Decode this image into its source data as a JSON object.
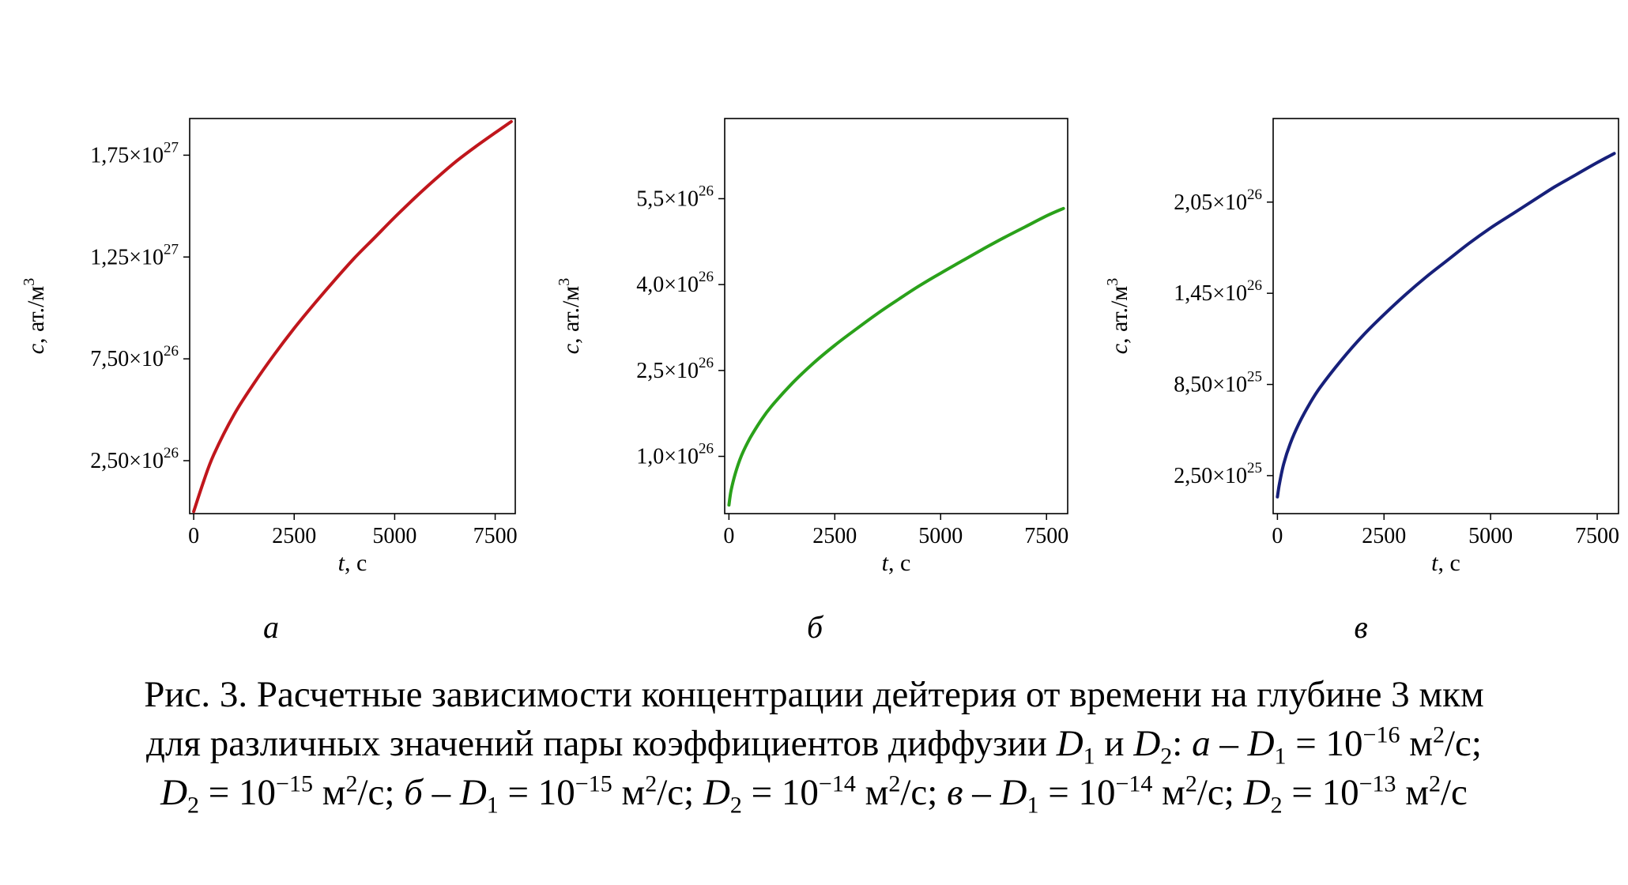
{
  "figure": {
    "caption_lines": [
      "Рис. 3. Расчетные зависимости концентрации дейтерия от времени на глубине 3 мкм",
      "для различных значений пары коэффициентов диффузии D1 и D2: а – D1 = 10−16 м2/с;",
      "D2 = 10−15 м2/с; б – D1 = 10−15 м2/с; D2 = 10−14 м2/с; в – D1 = 10−14 м2/с; D2 = 10−13 м2/с"
    ]
  },
  "chart_data": [
    {
      "type": "line",
      "panel_label": "а",
      "xlabel_var": "t",
      "xlabel_unit": ", с",
      "ylabel_var": "c",
      "ylabel_unit": ", ат./м",
      "ylabel_exp": "3",
      "color": "#c0161c",
      "xlim": [
        -100,
        8000
      ],
      "ylim": [
        -10000000000000000000000000,
        1930000000000000000000000000
      ],
      "xticks": [
        0,
        2500,
        5000,
        7500
      ],
      "xtick_labels": [
        "0",
        "2500",
        "5000",
        "7500"
      ],
      "yticks": [
        250000000000000000000000000,
        750000000000000000000000000,
        1250000000000000000000000000,
        1750000000000000000000000000
      ],
      "ytick_labels": [
        {
          "mantissa": "2,50×10",
          "exp": "26"
        },
        {
          "mantissa": "7,50×10",
          "exp": "26"
        },
        {
          "mantissa": "1,25×10",
          "exp": "27"
        },
        {
          "mantissa": "1,75×10",
          "exp": "27"
        }
      ],
      "series": [
        {
          "x": [
            0,
            250,
            500,
            1000,
            1500,
            2000,
            2500,
            3000,
            3500,
            4000,
            4500,
            5000,
            5500,
            6000,
            6500,
            7000,
            7500,
            7900
          ],
          "y": [
            0,
            150000000000000000000000000,
            280000000000000000000000000,
            475000000000000000000000000,
            630000000000000000000000000,
            770000000000000000000000000,
            900000000000000000000000000,
            1020000000000000000000000000,
            1135000000000000000000000000,
            1245000000000000000000000000,
            1345000000000000000000000000,
            1445000000000000000000000000,
            1540000000000000000000000000,
            1630000000000000000000000000,
            1715000000000000000000000000,
            1790000000000000000000000000,
            1860000000000000000000000000,
            1915000000000000000000000000
          ]
        }
      ]
    },
    {
      "type": "line",
      "panel_label": "б",
      "xlabel_var": "t",
      "xlabel_unit": ", с",
      "ylabel_var": "c",
      "ylabel_unit": ", ат./м",
      "ylabel_exp": "3",
      "color": "#2aa11a",
      "xlim": [
        -100,
        8000
      ],
      "ylim": [
        0,
        690000000000000000000000000
      ],
      "xticks": [
        0,
        2500,
        5000,
        7500
      ],
      "xtick_labels": [
        "0",
        "2500",
        "5000",
        "7500"
      ],
      "yticks": [
        100000000000000000000000000,
        250000000000000000000000000,
        400000000000000000000000000,
        550000000000000000000000000
      ],
      "ytick_labels": [
        {
          "mantissa": "1,0×10",
          "exp": "26"
        },
        {
          "mantissa": "2,5×10",
          "exp": "26"
        },
        {
          "mantissa": "4,0×10",
          "exp": "26"
        },
        {
          "mantissa": "5,5×10",
          "exp": "26"
        }
      ],
      "series": [
        {
          "x": [
            0,
            50,
            150,
            300,
            500,
            750,
            1000,
            1500,
            2000,
            2500,
            3000,
            3500,
            4000,
            4500,
            5000,
            5500,
            6000,
            6500,
            7000,
            7500,
            7900
          ],
          "y": [
            15000000000000000000000000,
            40000000000000000000000000,
            70000000000000000000000000,
            102000000000000000000000000,
            132000000000000000000000000,
            162000000000000000000000000,
            187000000000000000000000000,
            228000000000000000000000000,
            263000000000000000000000000,
            294000000000000000000000000,
            322000000000000000000000000,
            349000000000000000000000000,
            374000000000000000000000000,
            398000000000000000000000000,
            420000000000000000000000000,
            441000000000000000000000000,
            462000000000000000000000000,
            482000000000000000000000000,
            501000000000000000000000000,
            520000000000000000000000000,
            533000000000000000000000000
          ]
        }
      ]
    },
    {
      "type": "line",
      "panel_label": "в",
      "xlabel_var": "t",
      "xlabel_unit": ", с",
      "ylabel_var": "c",
      "ylabel_unit": ", ат./м",
      "ylabel_exp": "3",
      "color": "#17207a",
      "xlim": [
        -100,
        8000
      ],
      "ylim": [
        0,
        260000000000000000000000000
      ],
      "xticks": [
        0,
        2500,
        5000,
        7500
      ],
      "xtick_labels": [
        "0",
        "2500",
        "5000",
        "7500"
      ],
      "yticks": [
        25000000000000000000000000,
        85000000000000000000000000,
        145000000000000000000000000,
        205000000000000000000000000
      ],
      "ytick_labels": [
        {
          "mantissa": "2,50×10",
          "exp": "25"
        },
        {
          "mantissa": "8,50×10",
          "exp": "25"
        },
        {
          "mantissa": "1,45×10",
          "exp": "26"
        },
        {
          "mantissa": "2,05×10",
          "exp": "26"
        }
      ],
      "series": [
        {
          "x": [
            0,
            50,
            150,
            300,
            500,
            750,
            1000,
            1500,
            2000,
            2500,
            3000,
            3500,
            4000,
            4500,
            5000,
            5500,
            6000,
            6500,
            7000,
            7500,
            7900
          ],
          "y": [
            11000000000000000000000000,
            20000000000000000000000000,
            33000000000000000000000000,
            46000000000000000000000000,
            59000000000000000000000000,
            72000000000000000000000000,
            83000000000000000000000000,
            101000000000000000000000000,
            117000000000000000000000000,
            131000000000000000000000000,
            144000000000000000000000000,
            156000000000000000000000000,
            167000000000000000000000000,
            178000000000000000000000000,
            188000000000000000000000000,
            197000000000000000000000000,
            206000000000000000000000000,
            215000000000000000000000000,
            223000000000000000000000000,
            231000000000000000000000000,
            237000000000000000000000000
          ]
        }
      ]
    }
  ]
}
